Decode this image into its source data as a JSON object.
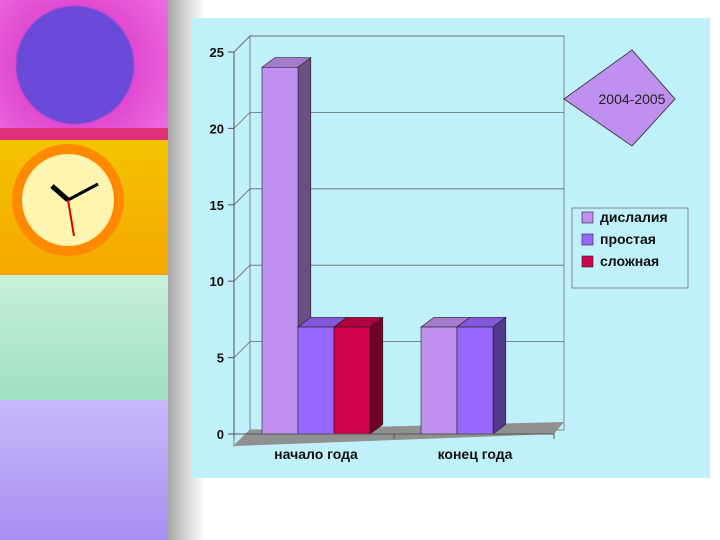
{
  "chart_data": {
    "type": "bar",
    "categories": [
      "начало года",
      "конец года"
    ],
    "series": [
      {
        "name": "дислалия",
        "values": [
          24,
          7
        ],
        "color": "#c090f0"
      },
      {
        "name": "простая",
        "values": [
          7,
          7
        ],
        "color": "#9966ff"
      },
      {
        "name": "сложная",
        "values": [
          7,
          0
        ],
        "color": "#d0004a"
      }
    ],
    "ylim": [
      0,
      25
    ],
    "yticks": [
      "0",
      "5",
      "10",
      "15",
      "20",
      "25"
    ],
    "grid": true,
    "legend": "right",
    "annotation": "2004-2005"
  },
  "colors": {
    "panel_background": "#c0f0fa",
    "annotation_fill": "#c090f0"
  }
}
